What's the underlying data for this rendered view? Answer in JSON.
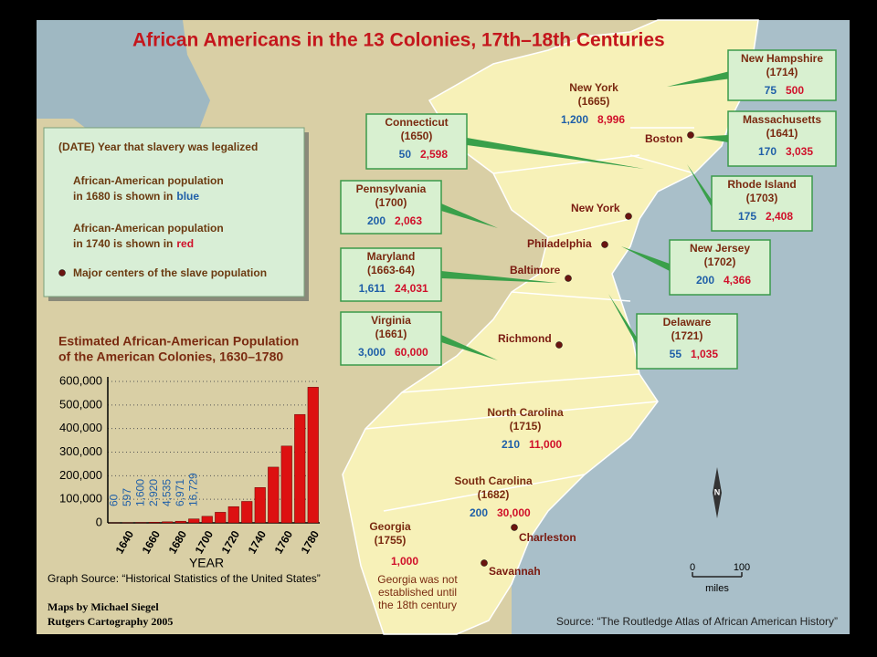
{
  "title": "African Americans in the 13 Colonies, 17th–18th Centuries",
  "legend": {
    "date_key": "(DATE) Year that slavery was legalized",
    "blue_key": [
      "African-American population",
      "in 1680 is shown in",
      "blue"
    ],
    "red_key": [
      "African-American population",
      "in 1740 is shown in",
      "red"
    ],
    "city_key": "Major centers of the slave population"
  },
  "colonies": [
    {
      "name": "New Hampshire",
      "year": "(1714)",
      "pop_1680": "75",
      "pop_1740": "500"
    },
    {
      "name": "New York",
      "year": "(1665)",
      "pop_1680": "1,200",
      "pop_1740": "8,996"
    },
    {
      "name": "Massachusetts",
      "year": "(1641)",
      "pop_1680": "170",
      "pop_1740": "3,035"
    },
    {
      "name": "Connecticut",
      "year": "(1650)",
      "pop_1680": "50",
      "pop_1740": "2,598"
    },
    {
      "name": "Rhode Island",
      "year": "(1703)",
      "pop_1680": "175",
      "pop_1740": "2,408"
    },
    {
      "name": "Pennsylvania",
      "year": "(1700)",
      "pop_1680": "200",
      "pop_1740": "2,063"
    },
    {
      "name": "New Jersey",
      "year": "(1702)",
      "pop_1680": "200",
      "pop_1740": "4,366"
    },
    {
      "name": "Maryland",
      "year": "(1663-64)",
      "pop_1680": "1,611",
      "pop_1740": "24,031"
    },
    {
      "name": "Delaware",
      "year": "(1721)",
      "pop_1680": "55",
      "pop_1740": "1,035"
    },
    {
      "name": "Virginia",
      "year": "(1661)",
      "pop_1680": "3,000",
      "pop_1740": "60,000"
    },
    {
      "name": "North Carolina",
      "year": "(1715)",
      "pop_1680": "210",
      "pop_1740": "11,000"
    },
    {
      "name": "South Carolina",
      "year": "(1682)",
      "pop_1680": "200",
      "pop_1740": "30,000"
    },
    {
      "name": "Georgia",
      "year": "(1755)",
      "pop_1740": "1,000",
      "note": [
        "Georgia was not",
        "established until",
        "the 18th century"
      ]
    }
  ],
  "cities": [
    "Boston",
    "New York",
    "Philadelphia",
    "Baltimore",
    "Richmond",
    "Charleston",
    "Savannah"
  ],
  "compass": "N",
  "scale": {
    "start": "0",
    "end": "100",
    "unit": "miles"
  },
  "credits": [
    "Maps by Michael Siegel",
    "Rutgers Cartography 2005"
  ],
  "source": "Source: “The Routledge Atlas of African American History”",
  "chart_data": {
    "type": "bar",
    "title": [
      "Estimated African-American Population",
      "of the American Colonies, 1630–1780"
    ],
    "x_label": "YEAR",
    "source": "Graph Source: “Historical Statistics of the United States”",
    "categories": [
      null,
      "1640",
      null,
      "1660",
      null,
      "1680",
      null,
      "1700",
      null,
      "1720",
      null,
      "1740",
      null,
      "1760",
      null,
      "1780"
    ],
    "values": [
      60,
      597,
      1600,
      2920,
      4535,
      6971,
      16729,
      27817,
      44866,
      68839,
      91021,
      150024,
      236420,
      325806,
      459822,
      575420
    ],
    "value_labels": [
      "60",
      "597",
      "1,600",
      "2,920",
      "4,535",
      "6,971",
      "16,729",
      null,
      null,
      null,
      null,
      null,
      null,
      null,
      null,
      null
    ],
    "color": "#dd1111",
    "label_color": "#1f5fa8",
    "ylim": [
      0,
      600000
    ],
    "yticks": [
      0,
      {
        "value": 100000,
        "label": "100,000"
      },
      {
        "value": 200000,
        "label": "200,000"
      },
      {
        "value": 300000,
        "label": "300,000"
      },
      {
        "value": 400000,
        "label": "400,000"
      },
      {
        "value": 500000,
        "label": "500,000"
      },
      {
        "value": 600000,
        "label": "600,000"
      }
    ],
    "grid": true
  }
}
